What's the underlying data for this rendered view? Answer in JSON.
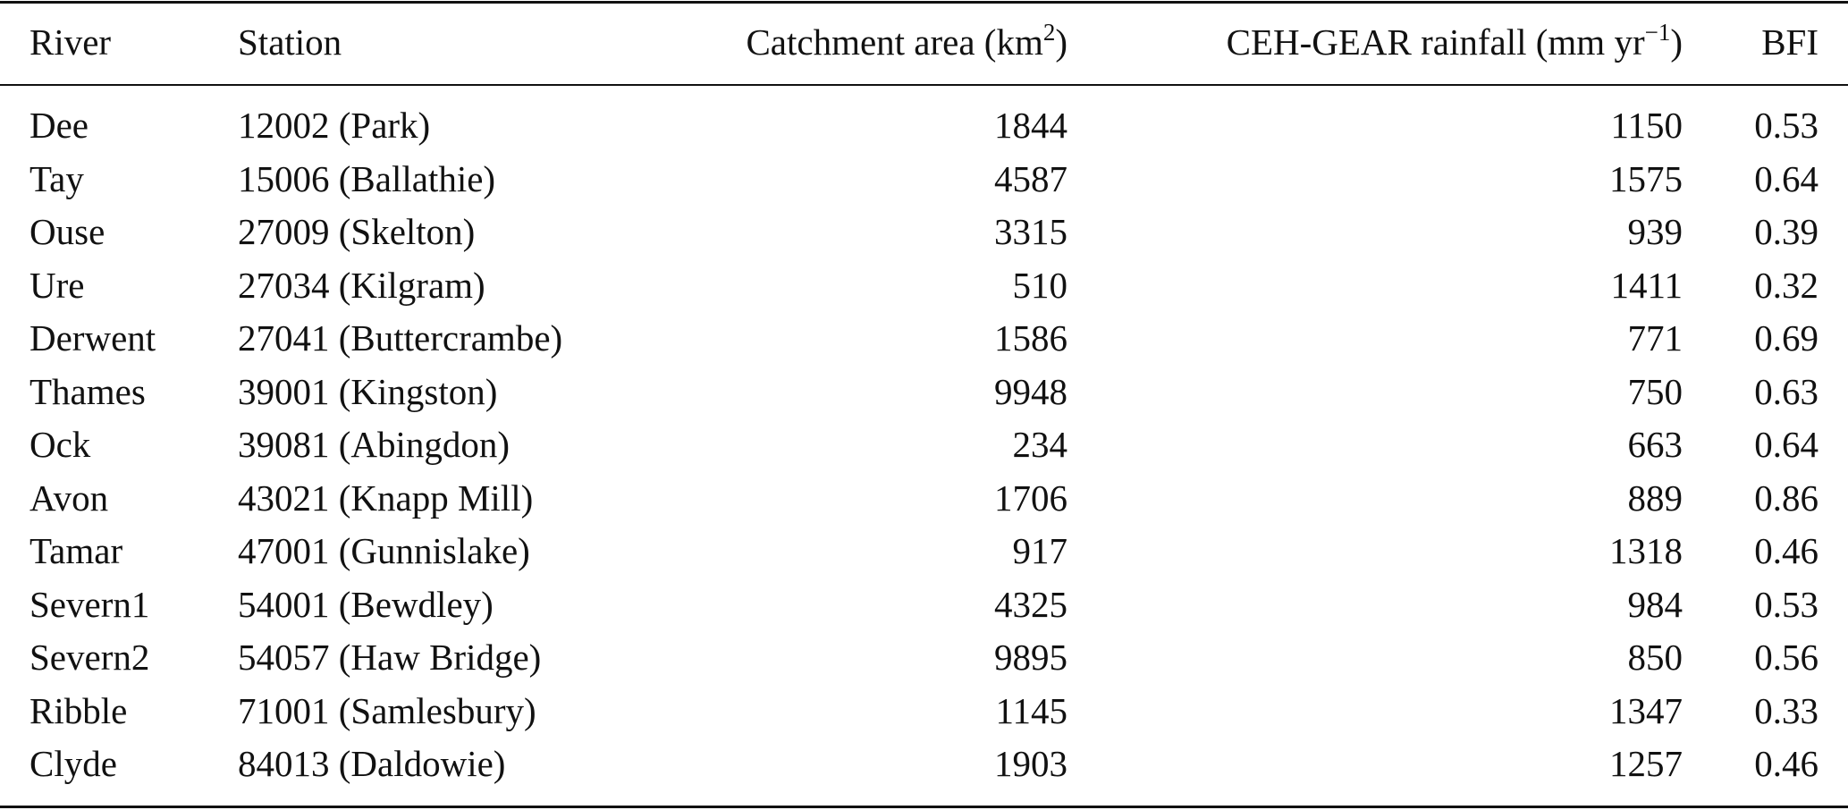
{
  "table": {
    "header": [
      "River",
      "Station",
      {
        "text": "Catchment area (km",
        "sup": "2",
        "tail": ")"
      },
      {
        "text": "CEH-GEAR rainfall (mm yr",
        "sup": "−1",
        "tail": ")"
      },
      "BFI"
    ],
    "rows": [
      [
        "Dee",
        "12002 (Park)",
        1844,
        1150,
        0.53
      ],
      [
        "Tay",
        "15006 (Ballathie)",
        4587,
        1575,
        0.64
      ],
      [
        "Ouse",
        "27009 (Skelton)",
        3315,
        939,
        0.39
      ],
      [
        "Ure",
        "27034 (Kilgram)",
        510,
        1411,
        0.32
      ],
      [
        "Derwent",
        "27041 (Buttercrambe)",
        1586,
        771,
        0.69
      ],
      [
        "Thames",
        "39001 (Kingston)",
        9948,
        750,
        0.63
      ],
      [
        "Ock",
        "39081 (Abingdon)",
        234,
        663,
        0.64
      ],
      [
        "Avon",
        "43021 (Knapp Mill)",
        1706,
        889,
        0.86
      ],
      [
        "Tamar",
        "47001 (Gunnislake)",
        917,
        1318,
        0.46
      ],
      [
        "Severn1",
        "54001 (Bewdley)",
        4325,
        984,
        0.53
      ],
      [
        "Severn2",
        "54057 (Haw Bridge)",
        9895,
        850,
        0.56
      ],
      [
        "Ribble",
        "71001 (Samlesbury)",
        1145,
        1347,
        0.33
      ],
      [
        "Clyde",
        "84013 (Daldowie)",
        1903,
        1257,
        0.46
      ]
    ]
  }
}
